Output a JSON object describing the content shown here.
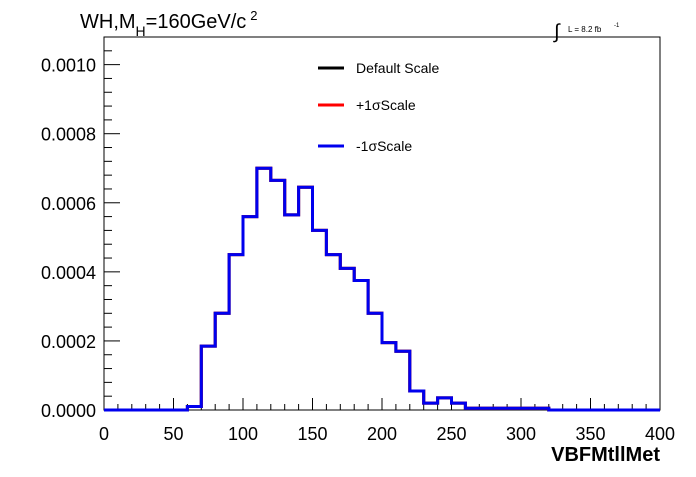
{
  "header": {
    "title_main": "WH,M",
    "title_sub": "H",
    "title_value": "=160GeV/c",
    "title_sup": "2",
    "lumi_integral": "∫",
    "lumi_text": "L = 8.2 fb",
    "lumi_sup": "-1"
  },
  "chart_data": {
    "type": "line",
    "xlabel": "VBFMtllMet",
    "ylabel": "",
    "xlim": [
      0,
      400
    ],
    "ylim": [
      0,
      0.00108
    ],
    "xticks": [
      "0",
      "50",
      "100",
      "150",
      "200",
      "250",
      "300",
      "350",
      "400"
    ],
    "yticks": [
      "0.0000",
      "0.0002",
      "0.0004",
      "0.0006",
      "0.0008",
      "0.0010"
    ],
    "grid": false,
    "legend_position": "top-center",
    "bin_width": 10,
    "bin_edges_start": 0,
    "series": [
      {
        "name": "Default Scale",
        "color": "#000000",
        "values": [
          0,
          0,
          0,
          0,
          0,
          0,
          1e-05,
          0.000185,
          0.00028,
          0.00045,
          0.00056,
          0.0007,
          0.000665,
          0.000565,
          0.000645,
          0.00052,
          0.00045,
          0.00041,
          0.000375,
          0.00028,
          0.000195,
          0.00017,
          5.5e-05,
          2e-05,
          3.5e-05,
          2e-05,
          5e-06,
          5e-06,
          5e-06,
          5e-06,
          5e-06,
          5e-06,
          0,
          0,
          0,
          0,
          0,
          0,
          0,
          0
        ]
      },
      {
        "name": "+1σScale",
        "color": "#ff0000",
        "values": [
          0,
          0,
          0,
          0,
          0,
          0,
          1e-05,
          0.000185,
          0.00028,
          0.00045,
          0.00056,
          0.0007,
          0.000665,
          0.000565,
          0.000645,
          0.00052,
          0.00045,
          0.00041,
          0.000375,
          0.00028,
          0.000195,
          0.00017,
          5.5e-05,
          2e-05,
          3.5e-05,
          2e-05,
          5e-06,
          5e-06,
          5e-06,
          5e-06,
          5e-06,
          5e-06,
          0,
          0,
          0,
          0,
          0,
          0,
          0,
          0
        ]
      },
      {
        "name": "-1σScale",
        "color": "#0000ee",
        "values": [
          0,
          0,
          0,
          0,
          0,
          0,
          1e-05,
          0.000185,
          0.00028,
          0.00045,
          0.00056,
          0.0007,
          0.000665,
          0.000565,
          0.000645,
          0.00052,
          0.00045,
          0.00041,
          0.000375,
          0.00028,
          0.000195,
          0.00017,
          5.5e-05,
          2e-05,
          3.5e-05,
          2e-05,
          5e-06,
          5e-06,
          5e-06,
          5e-06,
          5e-06,
          5e-06,
          0,
          0,
          0,
          0,
          0,
          0,
          0,
          0
        ]
      }
    ]
  }
}
